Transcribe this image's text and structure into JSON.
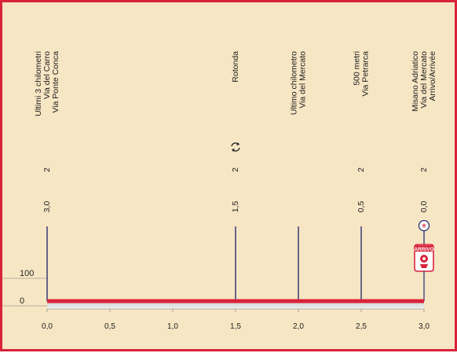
{
  "colors": {
    "background": "#f7e6c4",
    "border": "#d8233a",
    "route": "#d8233a",
    "markers": "#2a2f6e",
    "arrival_badge": "#d8233a"
  },
  "chart_data": {
    "type": "line",
    "title": "",
    "xlabel": "",
    "ylabel": "",
    "x_ticks": [
      "0,0",
      "0,5",
      "1,0",
      "1,5",
      "2,0",
      "2,5",
      "3,0"
    ],
    "y_ticks": [
      "0",
      "100"
    ],
    "xlim": [
      0,
      3
    ],
    "ylim": [
      0,
      200
    ],
    "profile": {
      "x": [
        0,
        3.0
      ],
      "y": [
        0,
        0
      ]
    },
    "grid": false,
    "waypoints": [
      {
        "id": "ultimi3km",
        "km": 0.0,
        "km_label": "3,0",
        "sign_label": "2",
        "label_lines": [
          "Ultimi 3 chilometri",
          "Via del Carro",
          "Via Ponte Conca"
        ],
        "icon": null,
        "line_top_fraction": 0.55
      },
      {
        "id": "rotonda",
        "km": 1.5,
        "km_label": "1,5",
        "sign_label": "2",
        "label_lines": [
          "Rotonda"
        ],
        "icon": "roundabout-icon",
        "line_top_fraction": 0.55
      },
      {
        "id": "ultimokm",
        "km": 2.0,
        "km_label": "",
        "sign_label": "",
        "label_lines": [
          "Ultimo chilometro",
          "Via del Mercato"
        ],
        "icon": null,
        "line_top_fraction": 0.55
      },
      {
        "id": "500m",
        "km": 2.5,
        "km_label": "0,5",
        "sign_label": "2",
        "label_lines": [
          "500 metri",
          "Via Petrarca"
        ],
        "icon": null,
        "line_top_fraction": 0.55
      },
      {
        "id": "arrivo",
        "km": 3.0,
        "km_label": "0,0",
        "sign_label": "2",
        "label_lines": [
          "Misano Adriatico",
          "Via del Mercato",
          "Arrivo/Arrivée"
        ],
        "icon": "finish-target-icon",
        "line_top_fraction": 0.55
      }
    ],
    "finish_badge": "ARRIVO"
  }
}
